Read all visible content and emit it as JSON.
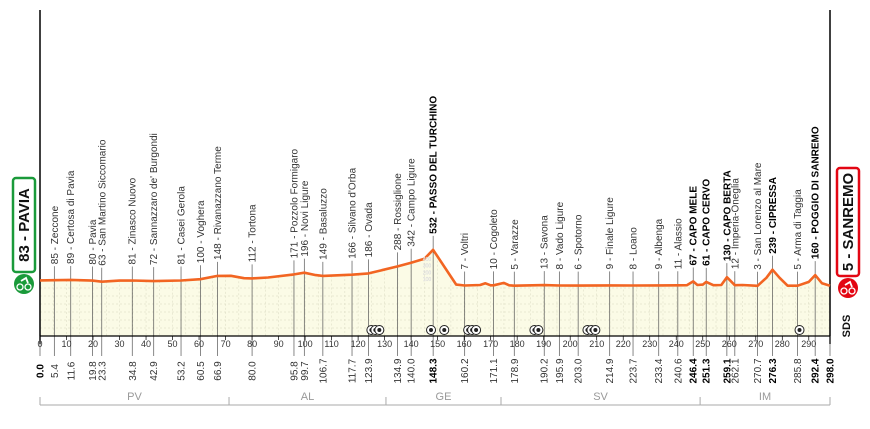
{
  "chart_data": {
    "type": "area",
    "title": "",
    "xlabel": "",
    "ylabel": "",
    "xlim": [
      0,
      298
    ],
    "x_ticks": [
      0,
      10,
      20,
      30,
      40,
      50,
      60,
      70,
      80,
      90,
      100,
      110,
      120,
      130,
      140,
      150,
      160,
      170,
      180,
      190,
      200,
      210,
      220,
      230,
      240,
      250,
      260,
      270,
      280,
      290
    ],
    "grid": true,
    "colors": {
      "profile": "#f26522",
      "fill": "#fbfbe6",
      "start": "#1a9a3a",
      "finish": "#e30613"
    },
    "start": {
      "label": "83 - PAVIA",
      "icon": "cyclist-icon"
    },
    "finish": {
      "label": "5 - SANREMO",
      "icon": "cyclist-icon"
    },
    "altitude_scale_ticks": [
      "100",
      "200",
      "300",
      "400"
    ],
    "waypoints": [
      {
        "km": 0.0,
        "alt": 83,
        "label": "",
        "km_label": "0.0",
        "bold": true
      },
      {
        "km": 5.4,
        "alt": 85,
        "label": "85 - Zeccone",
        "km_label": "5.4"
      },
      {
        "km": 11.6,
        "alt": 89,
        "label": "89 - Certosa di Pavia",
        "km_label": "11.6"
      },
      {
        "km": 19.8,
        "alt": 80,
        "label": "80 - Pavia",
        "km_label": "19.8"
      },
      {
        "km": 23.3,
        "alt": 63,
        "label": "63 - San Martino Siccomario",
        "km_label": "23.3"
      },
      {
        "km": 34.8,
        "alt": 81,
        "label": "81 - Zinasco Nuovo",
        "km_label": "34.8"
      },
      {
        "km": 42.9,
        "alt": 72,
        "label": "72 - Sannazzaro de' Burgondi",
        "km_label": "42.9"
      },
      {
        "km": 53.2,
        "alt": 81,
        "label": "81 - Casei Gerola",
        "km_label": "53.2"
      },
      {
        "km": 60.5,
        "alt": 100,
        "label": "100 - Voghera",
        "km_label": "60.5"
      },
      {
        "km": 66.9,
        "alt": 148,
        "label": "148 - Rivanazzano Terme",
        "km_label": "66.9"
      },
      {
        "km": 80.0,
        "alt": 112,
        "label": "112 - Tortona",
        "km_label": "80.0"
      },
      {
        "km": 95.8,
        "alt": 171,
        "label": "171 - Pozzolo Formigaro",
        "km_label": "95.8"
      },
      {
        "km": 99.7,
        "alt": 196,
        "label": "196 - Novi Ligure",
        "km_label": "99.7"
      },
      {
        "km": 106.7,
        "alt": 149,
        "label": "149 - Basaluzzo",
        "km_label": "106.7"
      },
      {
        "km": 117.7,
        "alt": 166,
        "label": "166 - Silvano d'Orba",
        "km_label": "117.7"
      },
      {
        "km": 123.9,
        "alt": 186,
        "label": "186 - Ovada",
        "km_label": "123.9"
      },
      {
        "km": 134.9,
        "alt": 288,
        "label": "288 - Rossiglione",
        "km_label": "134.9"
      },
      {
        "km": 140.0,
        "alt": 342,
        "label": "342 - Campo Ligure",
        "km_label": "140.0"
      },
      {
        "km": 148.3,
        "alt": 532,
        "label": "532 - PASSO DEL TURCHINO",
        "km_label": "148.3",
        "bold": true
      },
      {
        "km": 160.2,
        "alt": 7,
        "label": "7 - Voltri",
        "km_label": "160.2"
      },
      {
        "km": 171.1,
        "alt": 10,
        "label": "10 - Cogoleto",
        "km_label": "171.1"
      },
      {
        "km": 178.9,
        "alt": 5,
        "label": "5 - Varazze",
        "km_label": "178.9"
      },
      {
        "km": 190.2,
        "alt": 13,
        "label": "13 - Savona",
        "km_label": "190.2"
      },
      {
        "km": 195.9,
        "alt": 8,
        "label": "8 - Vado Ligure",
        "km_label": "195.9"
      },
      {
        "km": 203.0,
        "alt": 6,
        "label": "6 - Spotorno",
        "km_label": "203.0"
      },
      {
        "km": 214.9,
        "alt": 9,
        "label": "9 - Finale Ligure",
        "km_label": "214.9"
      },
      {
        "km": 223.7,
        "alt": 8,
        "label": "8 - Loano",
        "km_label": "223.7"
      },
      {
        "km": 233.4,
        "alt": 9,
        "label": "9 - Albenga",
        "km_label": "233.4"
      },
      {
        "km": 240.6,
        "alt": 11,
        "label": "11 - Alassio",
        "km_label": "240.6"
      },
      {
        "km": 246.4,
        "alt": 67,
        "label": "67 - CAPO MELE",
        "km_label": "246.4",
        "bold": true
      },
      {
        "km": 251.3,
        "alt": 61,
        "label": "61 - CAPO CERVO",
        "km_label": "251.3",
        "bold": true
      },
      {
        "km": 259.1,
        "alt": 130,
        "label": "130 - CAPO BERTA",
        "km_label": "259.1",
        "bold": true
      },
      {
        "km": 262.1,
        "alt": 12,
        "label": "12 - Imperia-Oneglia",
        "km_label": "262.1"
      },
      {
        "km": 270.7,
        "alt": 3,
        "label": "3 - San Lorenzo al Mare",
        "km_label": "270.7"
      },
      {
        "km": 276.3,
        "alt": 239,
        "label": "239 - CIPRESSA",
        "km_label": "276.3",
        "bold": true
      },
      {
        "km": 285.8,
        "alt": 5,
        "label": "5 - Arma di Taggia",
        "km_label": "285.8"
      },
      {
        "km": 292.4,
        "alt": 160,
        "label": "160 - POGGIO DI SANREMO",
        "km_label": "292.4",
        "bold": true
      },
      {
        "km": 298.0,
        "alt": 5,
        "label": "",
        "km_label": "298.0",
        "bold": true
      }
    ],
    "extra_profile_points": [
      [
        30,
        80
      ],
      [
        72,
        150
      ],
      [
        77,
        115
      ],
      [
        86,
        125
      ],
      [
        104,
        160
      ],
      [
        145,
        400
      ],
      [
        157,
        20
      ],
      [
        166,
        15
      ],
      [
        168,
        40
      ],
      [
        170,
        10
      ],
      [
        175,
        45
      ],
      [
        177,
        10
      ],
      [
        244,
        12
      ],
      [
        248,
        15
      ],
      [
        250,
        20
      ],
      [
        254,
        12
      ],
      [
        257,
        15
      ],
      [
        265,
        15
      ],
      [
        274,
        120
      ],
      [
        279,
        120
      ],
      [
        282,
        5
      ],
      [
        290,
        60
      ],
      [
        295,
        40
      ]
    ],
    "markers_km": [
      125,
      126.5,
      128,
      147.5,
      152.5,
      161.5,
      163,
      164.5,
      186.5,
      188,
      206.5,
      208,
      209.5,
      286.5
    ],
    "sectors": [
      {
        "label": "PV",
        "from": 0,
        "to": 71.3
      },
      {
        "label": "AL",
        "from": 71.3,
        "to": 130.5
      },
      {
        "label": "GE",
        "from": 130.5,
        "to": 173.9
      },
      {
        "label": "SV",
        "from": 173.9,
        "to": 249
      },
      {
        "label": "IM",
        "from": 249,
        "to": 298
      }
    ],
    "logo": "SDS"
  }
}
